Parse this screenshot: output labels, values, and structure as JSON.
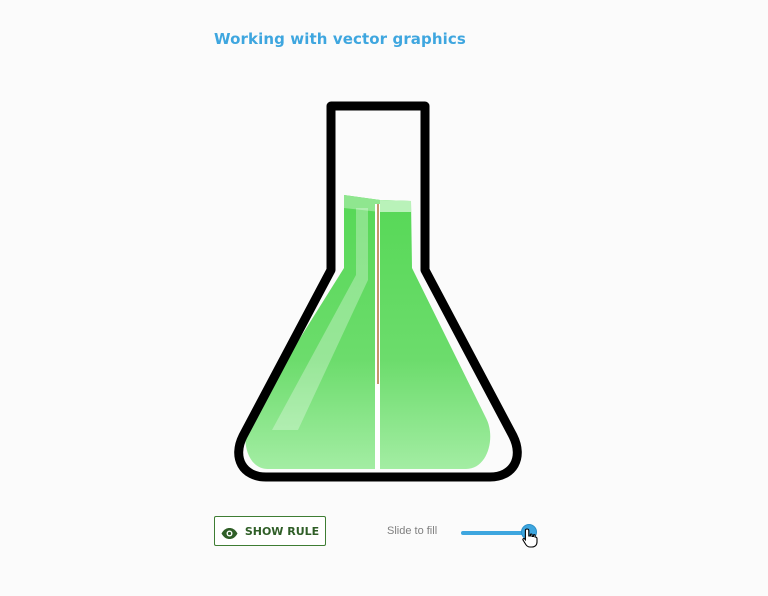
{
  "header": {
    "title": "Working with vector graphics"
  },
  "controls": {
    "show_rule_label": "SHOW RULE",
    "show_rule_icon": "eye-icon",
    "slider_label": "Slide to fill",
    "fill_level": 1.0
  },
  "colors": {
    "title": "#3ea6df",
    "accent": "#3ea6df",
    "button_border": "#3e7d33",
    "button_text": "#2f5e27",
    "liquid": "#5bd45b",
    "flask_outline": "#000000"
  }
}
